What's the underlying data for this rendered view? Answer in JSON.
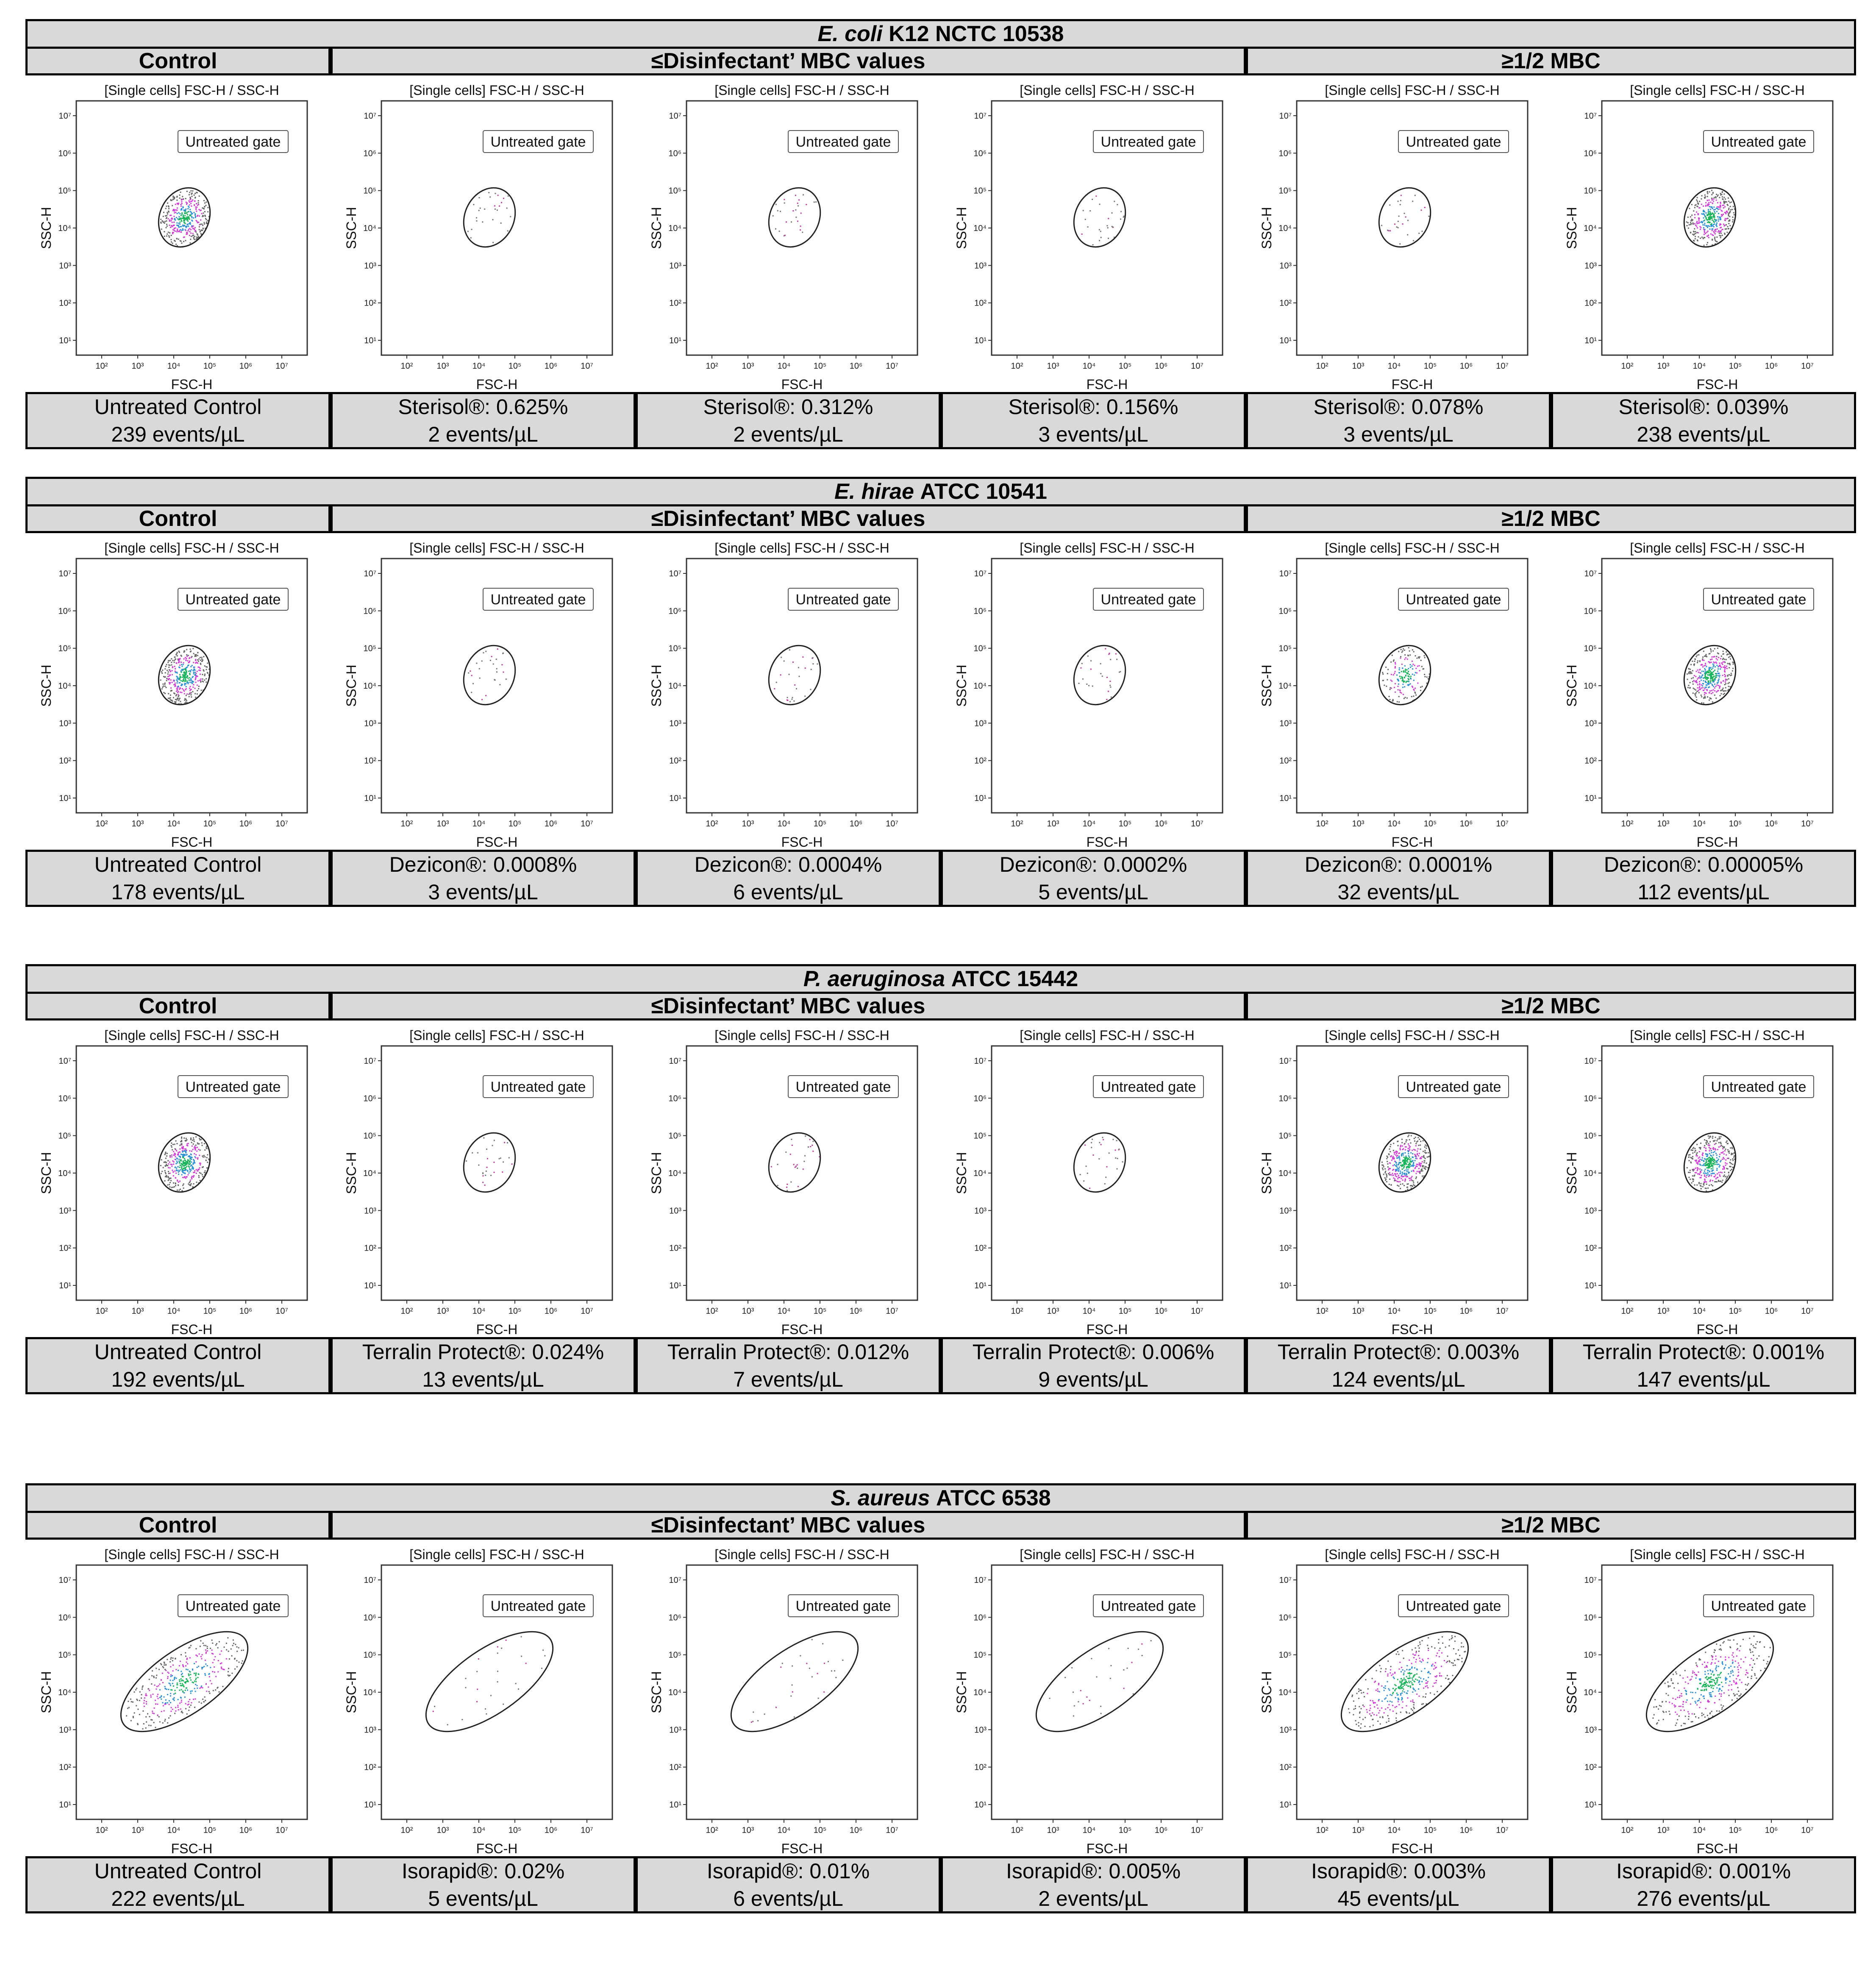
{
  "figure": {
    "panels": [
      {
        "title_species": "E. coli",
        "title_strain": "K12 NCTC 10538",
        "header_control": "Control",
        "header_mid": "≤Disinfectant’ MBC values",
        "header_right": "≥1/2 MBC",
        "plots": [
          {
            "title": "[Single cells] FSC-H / SSC-H",
            "gate_label": "Untreated gate",
            "density": "high",
            "xlabel": "FSC-H",
            "ylabel": "SSC-H",
            "treatment_name": "Untreated Control",
            "treatment_conc": "",
            "events": "239 events/µL"
          },
          {
            "title": "[Single cells] FSC-H / SSC-H",
            "gate_label": "Untreated gate",
            "density": "sparse",
            "xlabel": "FSC-H",
            "ylabel": "SSC-H",
            "treatment_name": "Sterisol®:",
            "treatment_conc": "0.625%",
            "events": "2 events/µL"
          },
          {
            "title": "[Single cells] FSC-H / SSC-H",
            "gate_label": "Untreated gate",
            "density": "sparse",
            "xlabel": "FSC-H",
            "ylabel": "SSC-H",
            "treatment_name": "Sterisol®:",
            "treatment_conc": "0.312%",
            "events": "2 events/µL"
          },
          {
            "title": "[Single cells] FSC-H / SSC-H",
            "gate_label": "Untreated gate",
            "density": "sparse",
            "xlabel": "FSC-H",
            "ylabel": "SSC-H",
            "treatment_name": "Sterisol®:",
            "treatment_conc": "0.156%",
            "events": "3 events/µL"
          },
          {
            "title": "[Single cells] FSC-H / SSC-H",
            "gate_label": "Untreated gate",
            "density": "sparse",
            "xlabel": "FSC-H",
            "ylabel": "SSC-H",
            "treatment_name": "Sterisol®:",
            "treatment_conc": "0.078%",
            "events": "3 events/µL"
          },
          {
            "title": "[Single cells] FSC-H / SSC-H",
            "gate_label": "Untreated gate",
            "density": "high",
            "xlabel": "FSC-H",
            "ylabel": "SSC-H",
            "treatment_name": "Sterisol®:",
            "treatment_conc": "0.039%",
            "events": "238 events/µL"
          }
        ]
      },
      {
        "title_species": "E. hirae",
        "title_strain": "ATCC 10541",
        "header_control": "Control",
        "header_mid": "≤Disinfectant’ MBC values",
        "header_right": "≥1/2 MBC",
        "plots": [
          {
            "title": "[Single cells] FSC-H / SSC-H",
            "gate_label": "Untreated gate",
            "density": "high",
            "xlabel": "FSC-H",
            "ylabel": "SSC-H",
            "treatment_name": "Untreated Control",
            "treatment_conc": "",
            "events": "178 events/µL"
          },
          {
            "title": "[Single cells] FSC-H / SSC-H",
            "gate_label": "Untreated gate",
            "density": "sparse",
            "xlabel": "FSC-H",
            "ylabel": "SSC-H",
            "treatment_name": "Dezicon®:",
            "treatment_conc": "0.0008%",
            "events": "3 events/µL"
          },
          {
            "title": "[Single cells] FSC-H / SSC-H",
            "gate_label": "Untreated gate",
            "density": "sparse",
            "xlabel": "FSC-H",
            "ylabel": "SSC-H",
            "treatment_name": "Dezicon®:",
            "treatment_conc": "0.0004%",
            "events": "6 events/µL"
          },
          {
            "title": "[Single cells] FSC-H / SSC-H",
            "gate_label": "Untreated gate",
            "density": "sparse",
            "xlabel": "FSC-H",
            "ylabel": "SSC-H",
            "treatment_name": "Dezicon®:",
            "treatment_conc": "0.0002%",
            "events": "5 events/µL"
          },
          {
            "title": "[Single cells] FSC-H / SSC-H",
            "gate_label": "Untreated gate",
            "density": "medium",
            "xlabel": "FSC-H",
            "ylabel": "SSC-H",
            "treatment_name": "Dezicon®:",
            "treatment_conc": "0.0001%",
            "events": "32 events/µL"
          },
          {
            "title": "[Single cells] FSC-H / SSC-H",
            "gate_label": "Untreated gate",
            "density": "high",
            "xlabel": "FSC-H",
            "ylabel": "SSC-H",
            "treatment_name": "Dezicon®:",
            "treatment_conc": "0.00005%",
            "events": "112 events/µL"
          }
        ]
      },
      {
        "title_species": "P. aeruginosa",
        "title_strain": "ATCC 15442",
        "header_control": "Control",
        "header_mid": "≤Disinfectant’ MBC values",
        "header_right": "≥1/2 MBC",
        "plots": [
          {
            "title": "[Single cells] FSC-H / SSC-H",
            "gate_label": "Untreated gate",
            "density": "high",
            "xlabel": "FSC-H",
            "ylabel": "SSC-H",
            "treatment_name": "Untreated Control",
            "treatment_conc": "",
            "events": "192 events/µL"
          },
          {
            "title": "[Single cells] FSC-H / SSC-H",
            "gate_label": "Untreated gate",
            "density": "sparse",
            "xlabel": "FSC-H",
            "ylabel": "SSC-H",
            "treatment_name": "Terralin Protect®:",
            "treatment_conc": "0.024%",
            "events": "13 events/µL"
          },
          {
            "title": "[Single cells] FSC-H / SSC-H",
            "gate_label": "Untreated gate",
            "density": "sparse",
            "xlabel": "FSC-H",
            "ylabel": "SSC-H",
            "treatment_name": "Terralin Protect®:",
            "treatment_conc": "0.012%",
            "events": "7 events/µL"
          },
          {
            "title": "[Single cells] FSC-H / SSC-H",
            "gate_label": "Untreated gate",
            "density": "sparse",
            "xlabel": "FSC-H",
            "ylabel": "SSC-H",
            "treatment_name": "Terralin Protect®:",
            "treatment_conc": "0.006%",
            "events": "9 events/µL"
          },
          {
            "title": "[Single cells] FSC-H / SSC-H",
            "gate_label": "Untreated gate",
            "density": "high",
            "xlabel": "FSC-H",
            "ylabel": "SSC-H",
            "treatment_name": "Terralin Protect®:",
            "treatment_conc": "0.003%",
            "events": "124 events/µL"
          },
          {
            "title": "[Single cells] FSC-H / SSC-H",
            "gate_label": "Untreated gate",
            "density": "high",
            "xlabel": "FSC-H",
            "ylabel": "SSC-H",
            "treatment_name": "Terralin Protect®:",
            "treatment_conc": "0.001%",
            "events": "147 events/µL"
          }
        ]
      },
      {
        "title_species": "S. aureus",
        "title_strain": "ATCC 6538",
        "header_control": "Control",
        "header_mid": "≤Disinfectant’ MBC values",
        "header_right": "≥1/2 MBC",
        "plots": [
          {
            "title": "[Single cells] FSC-H / SSC-H",
            "gate_label": "Untreated gate",
            "density": "high",
            "xlabel": "FSC-H",
            "ylabel": "SSC-H",
            "treatment_name": "Untreated Control",
            "treatment_conc": "",
            "events": "222 events/µL"
          },
          {
            "title": "[Single cells] FSC-H / SSC-H",
            "gate_label": "Untreated gate",
            "density": "sparse",
            "xlabel": "FSC-H",
            "ylabel": "SSC-H",
            "treatment_name": "Isorapid®:",
            "treatment_conc": "0.02%",
            "events": "5 events/µL"
          },
          {
            "title": "[Single cells] FSC-H / SSC-H",
            "gate_label": "Untreated gate",
            "density": "sparse",
            "xlabel": "FSC-H",
            "ylabel": "SSC-H",
            "treatment_name": "Isorapid®:",
            "treatment_conc": "0.01%",
            "events": "6 events/µL"
          },
          {
            "title": "[Single cells] FSC-H / SSC-H",
            "gate_label": "Untreated gate",
            "density": "sparse",
            "xlabel": "FSC-H",
            "ylabel": "SSC-H",
            "treatment_name": "Isorapid®:",
            "treatment_conc": "0.005%",
            "events": "2 events/µL"
          },
          {
            "title": "[Single cells] FSC-H / SSC-H",
            "gate_label": "Untreated gate",
            "density": "high",
            "xlabel": "FSC-H",
            "ylabel": "SSC-H",
            "treatment_name": "Isorapid®:",
            "treatment_conc": "0.003%",
            "events": "45 events/µL"
          },
          {
            "title": "[Single cells] FSC-H / SSC-H",
            "gate_label": "Untreated gate",
            "density": "high",
            "xlabel": "FSC-H",
            "ylabel": "SSC-H",
            "treatment_name": "Isorapid®:",
            "treatment_conc": "0.001%",
            "events": "276 events/µL"
          }
        ]
      }
    ],
    "y_ticks": [
      "10¹",
      "10²",
      "10³",
      "10⁴",
      "10⁵",
      "10⁶",
      "10⁷"
    ],
    "x_ticks": [
      "10²",
      "10³",
      "10⁴",
      "10⁵",
      "10⁶",
      "10⁷"
    ]
  }
}
